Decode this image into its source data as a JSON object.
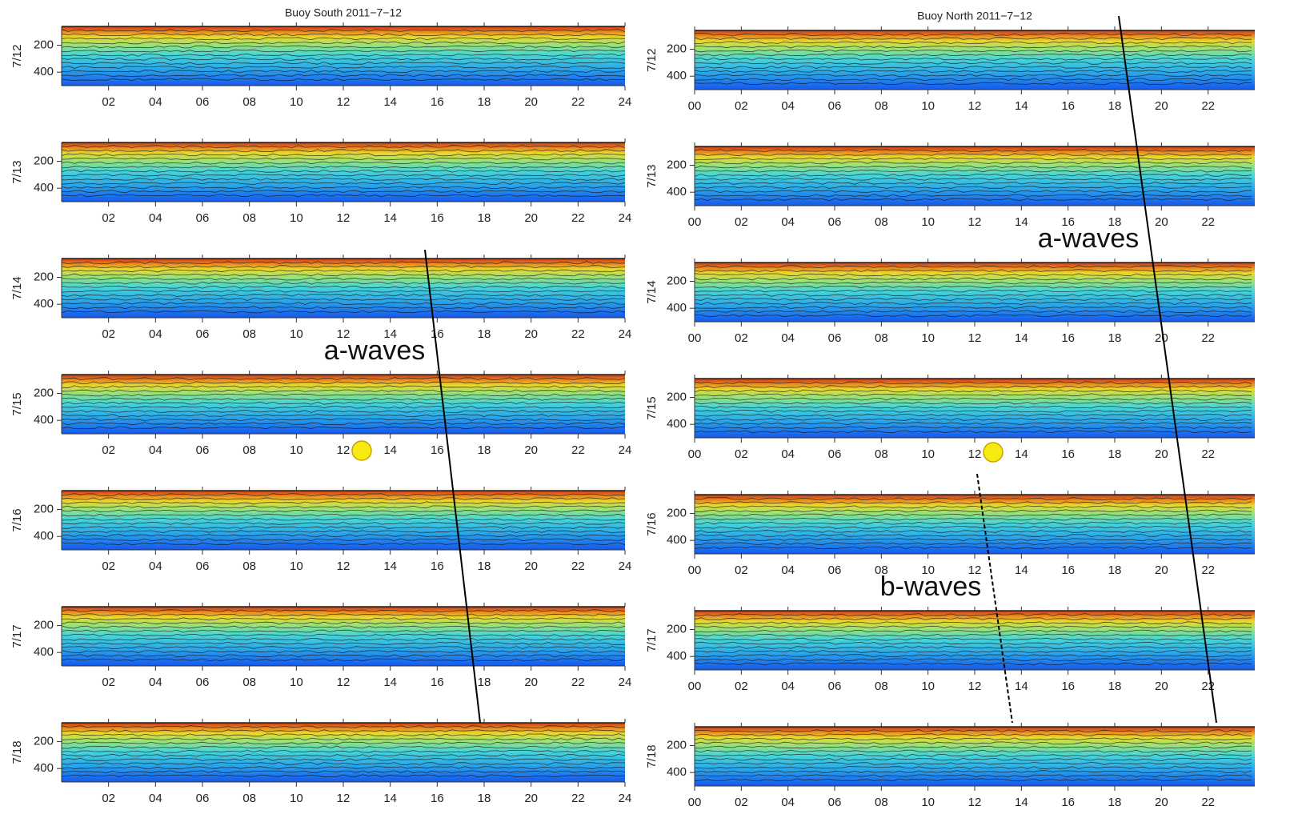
{
  "chart_data": [
    {
      "type": "contour",
      "title": "Buoy South 2011−7−12",
      "rows": [
        "7/12",
        "7/13",
        "7/14",
        "7/15",
        "7/16",
        "7/17",
        "7/18"
      ],
      "xlim": [
        0,
        24
      ],
      "xticks": [
        {
          "value": 2,
          "label": "02"
        },
        {
          "value": 4,
          "label": "04"
        },
        {
          "value": 6,
          "label": "06"
        },
        {
          "value": 8,
          "label": "08"
        },
        10,
        12,
        14,
        16,
        18,
        20,
        22,
        24
      ],
      "ylim": [
        60,
        500
      ],
      "yticks": [
        200,
        400
      ]
    },
    {
      "type": "contour",
      "title": "Buoy North 2011−7−12",
      "rows": [
        "7/12",
        "7/13",
        "7/14",
        "7/15",
        "7/16",
        "7/17",
        "7/18"
      ],
      "xlim": [
        0,
        24
      ],
      "xticks": [
        {
          "value": 0,
          "label": "00"
        },
        {
          "value": 2,
          "label": "02"
        },
        {
          "value": 4,
          "label": "04"
        },
        {
          "value": 6,
          "label": "06"
        },
        {
          "value": 8,
          "label": "08"
        },
        10,
        12,
        14,
        16,
        18,
        20,
        22
      ],
      "ylim": [
        60,
        500
      ],
      "yticks": [
        200,
        400
      ]
    }
  ],
  "annotations": [
    "a-waves",
    "a-waves",
    "b-waves"
  ]
}
